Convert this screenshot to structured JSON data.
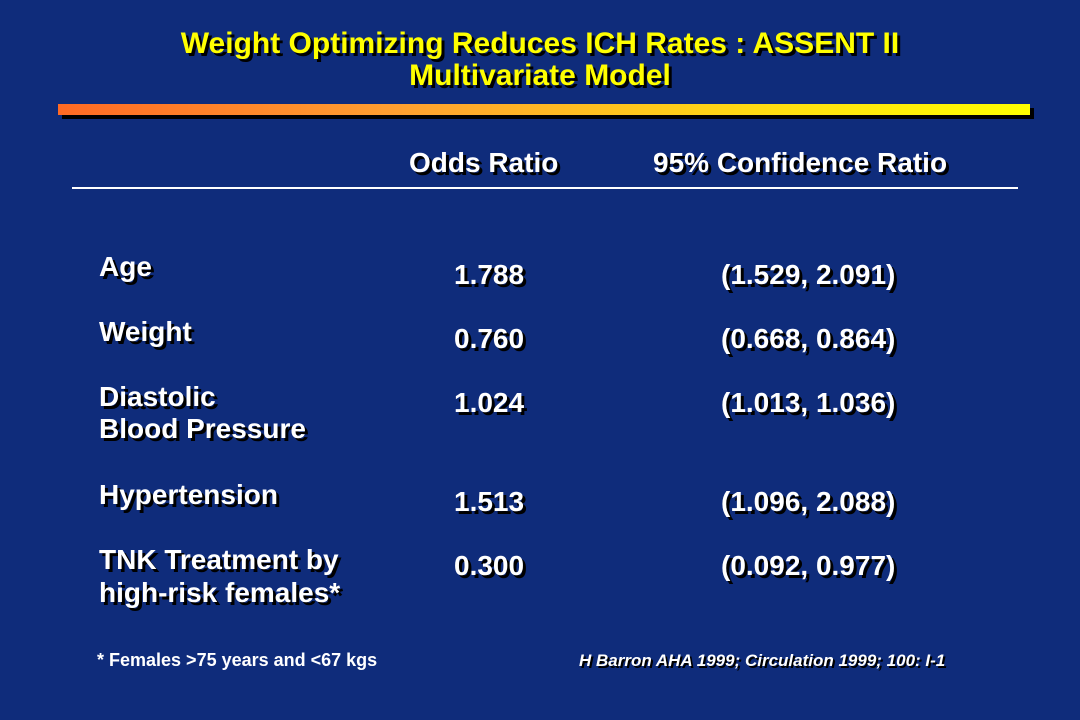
{
  "slide": {
    "title_line1": "Weight Optimizing Reduces ICH Rates : ASSENT II",
    "title_line2": "Multivariate Model",
    "colors": {
      "background": "#0f2c7b",
      "title": "#ffff00",
      "text": "#ffffff",
      "bar_start": "#ff6a24",
      "bar_end": "#ffff00"
    }
  },
  "table": {
    "headers": {
      "odds_ratio": "Odds Ratio",
      "confidence": "95% Confidence Ratio"
    },
    "rows": [
      {
        "label_line1": "Age",
        "label_line2": "",
        "odds": "1.788",
        "ci": "(1.529, 2.091)"
      },
      {
        "label_line1": "Weight",
        "label_line2": "",
        "odds": "0.760",
        "ci": "(0.668, 0.864)"
      },
      {
        "label_line1": "Diastolic",
        "label_line2": "Blood Pressure",
        "odds": "1.024",
        "ci": "(1.013, 1.036)"
      },
      {
        "label_line1": "Hypertension",
        "label_line2": "",
        "odds": "1.513",
        "ci": "(1.096, 2.088)"
      },
      {
        "label_line1": "TNK Treatment by",
        "label_line2": "high-risk females*",
        "odds": "0.300",
        "ci": "(0.092, 0.977)"
      }
    ]
  },
  "footer": {
    "footnote": "* Females >75 years and <67 kgs",
    "citation": "H Barron AHA 1999; Circulation 1999; 100: I-1"
  }
}
